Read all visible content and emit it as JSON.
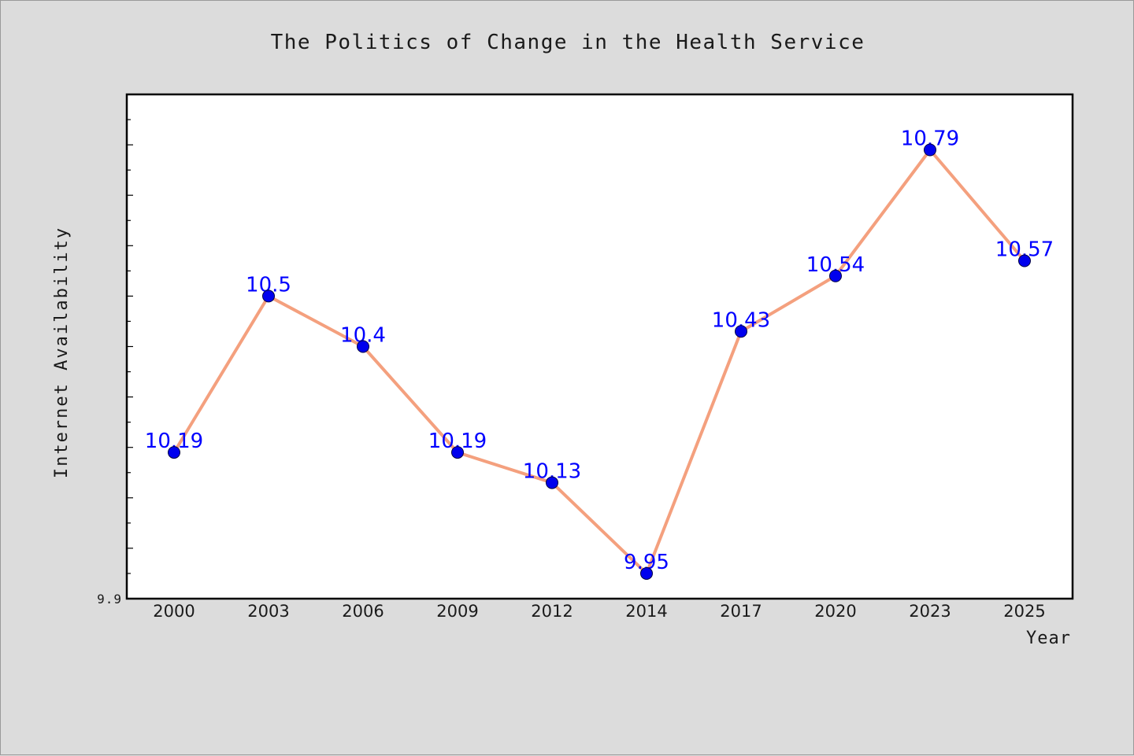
{
  "chart_data": {
    "type": "line",
    "title": "The Politics of Change in the Health Service",
    "xlabel": "Year",
    "ylabel": "Internet Availability",
    "categories": [
      "2000",
      "2003",
      "2006",
      "2009",
      "2012",
      "2014",
      "2017",
      "2020",
      "2023",
      "2025"
    ],
    "series": [
      {
        "values": [
          10.19,
          10.5,
          10.4,
          10.19,
          10.13,
          9.95,
          10.43,
          10.54,
          10.79,
          10.57
        ],
        "labels": [
          "10.19",
          "10.5",
          "10.4",
          "10.19",
          "10.13",
          "9.95",
          "10.43",
          "10.54",
          "10.79",
          "10.57"
        ]
      }
    ],
    "ylim": [
      9.9,
      10.9
    ],
    "y_tick_labels": [
      "9.9"
    ],
    "grid": false,
    "legend": "none",
    "colors": {
      "background": "#dcdcdc",
      "plot_background": "#ffffff",
      "line": "#f4a07e",
      "marker": "#0000ee",
      "data_label": "#0000ff",
      "axis": "#000000",
      "text": "#1a1a1a"
    }
  }
}
